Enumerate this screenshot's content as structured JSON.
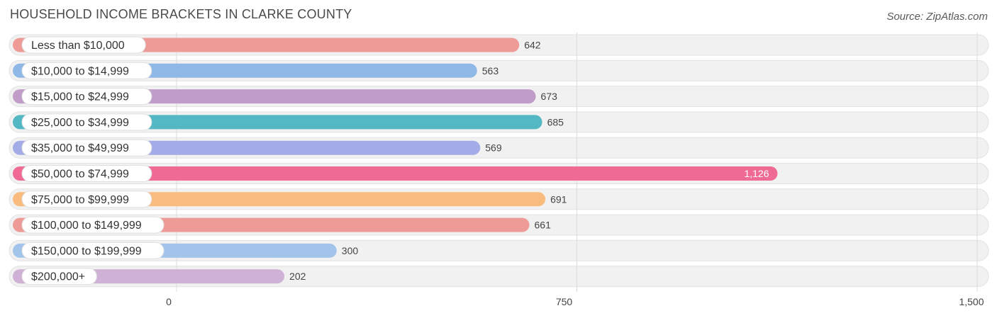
{
  "header": {
    "title": "HOUSEHOLD INCOME BRACKETS IN CLARKE COUNTY",
    "source": "Source: ZipAtlas.com"
  },
  "chart_data": {
    "type": "bar",
    "orientation": "horizontal",
    "title": "HOUSEHOLD INCOME BRACKETS IN CLARKE COUNTY",
    "categories": [
      "Less than $10,000",
      "$10,000 to $14,999",
      "$15,000 to $24,999",
      "$25,000 to $34,999",
      "$35,000 to $49,999",
      "$50,000 to $74,999",
      "$75,000 to $99,999",
      "$100,000 to $149,999",
      "$150,000 to $199,999",
      "$200,000+"
    ],
    "values": [
      642,
      563,
      673,
      685,
      569,
      1126,
      691,
      661,
      300,
      202
    ],
    "value_labels": [
      "642",
      "563",
      "673",
      "685",
      "569",
      "1,126",
      "691",
      "661",
      "300",
      "202"
    ],
    "colors": [
      "#ee9a96",
      "#8fb8e6",
      "#c09cc9",
      "#54b8c4",
      "#a3ace6",
      "#f06b93",
      "#f9bb7e",
      "#ee9a96",
      "#a3c4ea",
      "#cfb1d5"
    ],
    "xlim": [
      0,
      1500
    ],
    "ticks": [
      0,
      750,
      1500
    ],
    "tick_labels": [
      "0",
      "750",
      "1,500"
    ],
    "grid": true
  }
}
